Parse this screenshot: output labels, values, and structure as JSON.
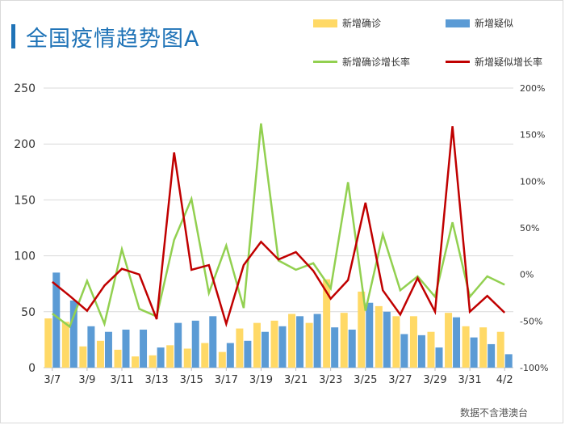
{
  "title": "全国疫情趋势图A",
  "footnote": "数据不含港澳台",
  "legend": [
    {
      "name": "新增确诊",
      "kind": "bar",
      "color": "#ffd966"
    },
    {
      "name": "新增疑似",
      "kind": "bar",
      "color": "#5b9bd5"
    },
    {
      "name": "新增确诊增长率",
      "kind": "line",
      "color": "#92d050"
    },
    {
      "name": "新增疑似增长率",
      "kind": "line",
      "color": "#c00000"
    }
  ],
  "chart_data": {
    "type": "bar",
    "categories": [
      "3/7",
      "3/8",
      "3/9",
      "3/10",
      "3/11",
      "3/12",
      "3/13",
      "3/14",
      "3/15",
      "3/16",
      "3/17",
      "3/18",
      "3/19",
      "3/20",
      "3/21",
      "3/22",
      "3/23",
      "3/24",
      "3/25",
      "3/26",
      "3/27",
      "3/28",
      "3/29",
      "3/30",
      "3/31",
      "4/1",
      "4/2"
    ],
    "x_tick_labels": [
      "3/7",
      "3/9",
      "3/11",
      "3/13",
      "3/15",
      "3/17",
      "3/19",
      "3/21",
      "3/23",
      "3/25",
      "3/27",
      "3/29",
      "3/31",
      "4/2"
    ],
    "y_left": {
      "min": 0,
      "max": 250,
      "ticks": [
        0,
        50,
        100,
        150,
        200,
        250
      ]
    },
    "y_right": {
      "min": -100,
      "max": 200,
      "ticks": [
        -100,
        -50,
        0,
        50,
        100,
        150,
        200
      ],
      "tick_labels": [
        "-100%",
        "-50%",
        "0%",
        "50%",
        "100%",
        "150%",
        "200%"
      ]
    },
    "gridlines": true,
    "series": [
      {
        "name": "新增确诊",
        "type": "bar",
        "axis": "left",
        "color": "#ffd966",
        "values": [
          44,
          41,
          19,
          24,
          16,
          10,
          11,
          20,
          17,
          22,
          14,
          35,
          40,
          42,
          48,
          40,
          79,
          49,
          68,
          55,
          46,
          46,
          32,
          49,
          37,
          36,
          32
        ]
      },
      {
        "name": "新增疑似",
        "type": "bar",
        "axis": "left",
        "color": "#5b9bd5",
        "values": [
          85,
          60,
          37,
          32,
          34,
          34,
          18,
          40,
          42,
          46,
          22,
          24,
          32,
          37,
          46,
          48,
          36,
          34,
          58,
          50,
          30,
          29,
          18,
          45,
          27,
          21,
          12
        ]
      },
      {
        "name": "新增确诊增长率",
        "type": "line",
        "axis": "right",
        "color": "#92d050",
        "values": [
          -42,
          -56,
          -7,
          -53,
          27,
          -37,
          -45,
          37,
          81,
          -20,
          31,
          -36,
          162,
          15,
          5,
          12,
          -15,
          99,
          -39,
          43,
          -17,
          -2,
          -24,
          56,
          -24,
          -2,
          -11
        ]
      },
      {
        "name": "新增疑似增长率",
        "type": "line",
        "axis": "right",
        "color": "#c00000",
        "values": [
          -8,
          -23,
          -39,
          -12,
          6,
          0,
          -48,
          131,
          5,
          10,
          -53,
          10,
          35,
          16,
          24,
          4,
          -26,
          -6,
          77,
          -17,
          -43,
          -4,
          -40,
          159,
          -40,
          -23,
          -41
        ]
      }
    ]
  }
}
